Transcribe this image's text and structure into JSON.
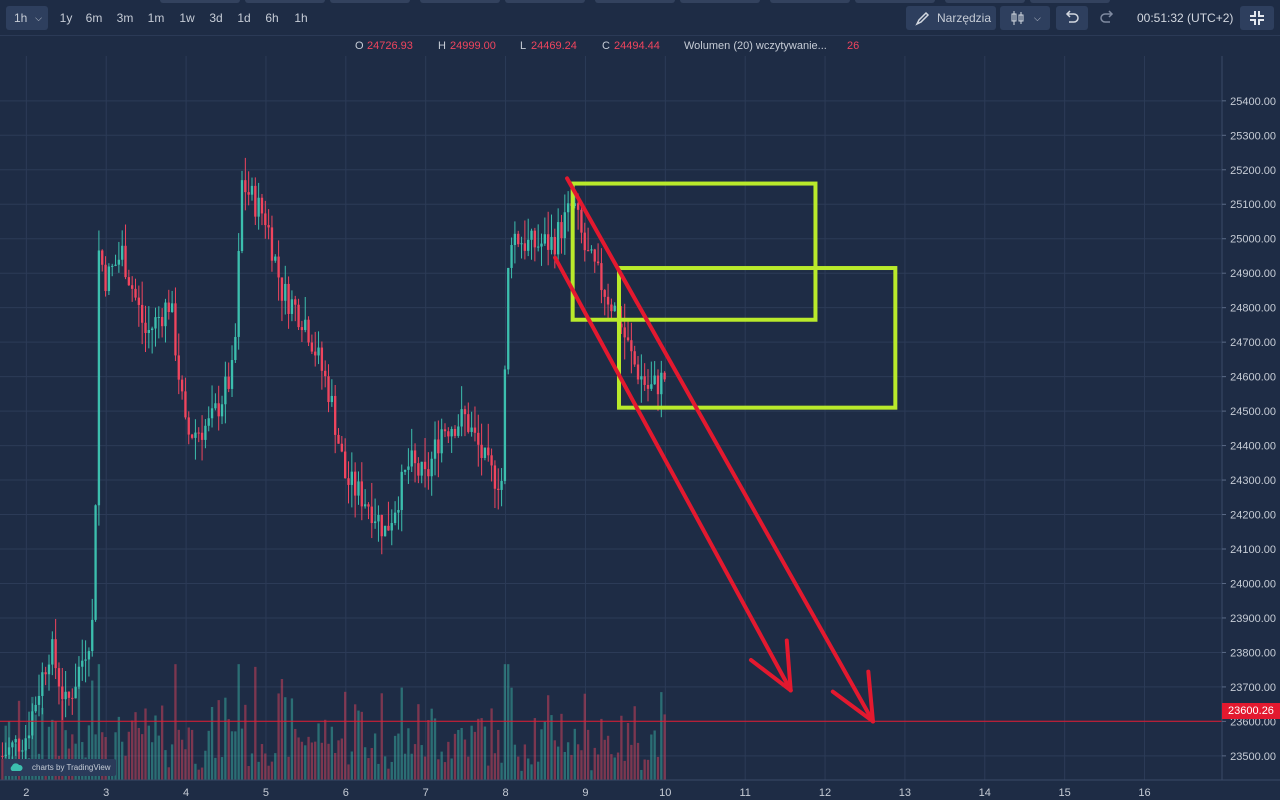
{
  "toolbar": {
    "interval": "1h",
    "ranges": [
      "1y",
      "6m",
      "3m",
      "1m",
      "1w",
      "3d",
      "1d",
      "6h",
      "1h"
    ],
    "tools_label": "Narzędzia",
    "clock": "00:51:32 (UTC+2)",
    "icons": [
      "pencil-icon",
      "candlestick-icon",
      "chevron-down-icon",
      "undo-icon",
      "redo-icon",
      "fullscreen-exit-icon"
    ]
  },
  "legend": {
    "o_label": "O",
    "o_value": "24726.93",
    "h_label": "H",
    "h_value": "24999.00",
    "l_label": "L",
    "l_value": "24469.24",
    "c_label": "C",
    "c_value": "24494.44",
    "volume_label": "Wolumen (20) wczytywanie...",
    "volume_value": "26"
  },
  "colors": {
    "background": "#1e2c45",
    "up": "#3cbfae",
    "down": "#f0455e",
    "annotation_box": "#b9ea2b",
    "annotation_arrow": "#e3192f",
    "price_line": "#e3192f"
  },
  "watermark": "charts by TradingView",
  "current_price_label": "23600.26",
  "chart_data": {
    "type": "candlestick",
    "title": "",
    "y_ticks": [
      "25400.00",
      "25300.00",
      "25200.00",
      "25100.00",
      "25000.00",
      "24900.00",
      "24800.00",
      "24700.00",
      "24600.00",
      "24500.00",
      "24400.00",
      "24300.00",
      "24200.00",
      "24100.00",
      "24000.00",
      "23900.00",
      "23800.00",
      "23700.00",
      "23600.00",
      "23500.00"
    ],
    "ylim": [
      23430,
      25530
    ],
    "x_ticks": [
      "2",
      "3",
      "4",
      "5",
      "6",
      "7",
      "8",
      "9",
      "10",
      "11",
      "12",
      "13",
      "14",
      "15",
      "16"
    ],
    "x_unit": "day",
    "xlim": [
      1.67,
      16.97
    ],
    "grid": true,
    "horizontal_line": 23600.26,
    "series": [
      {
        "x": 1.7,
        "close": 23500
      },
      {
        "x": 2.0,
        "close": 23560
      },
      {
        "x": 2.3,
        "close": 23820
      },
      {
        "x": 2.5,
        "close": 23640
      },
      {
        "x": 2.7,
        "close": 23780
      },
      {
        "x": 2.85,
        "close": 23900
      },
      {
        "x": 2.9,
        "close": 24970
      },
      {
        "x": 3.0,
        "close": 24880
      },
      {
        "x": 3.2,
        "close": 24960
      },
      {
        "x": 3.5,
        "close": 24720
      },
      {
        "x": 3.8,
        "close": 24820
      },
      {
        "x": 4.0,
        "close": 24430
      },
      {
        "x": 4.3,
        "close": 24460
      },
      {
        "x": 4.6,
        "close": 24620
      },
      {
        "x": 4.7,
        "close": 25160
      },
      {
        "x": 5.0,
        "close": 25060
      },
      {
        "x": 5.2,
        "close": 24850
      },
      {
        "x": 5.5,
        "close": 24760
      },
      {
        "x": 5.8,
        "close": 24550
      },
      {
        "x": 6.0,
        "close": 24300
      },
      {
        "x": 6.3,
        "close": 24230
      },
      {
        "x": 6.5,
        "close": 24150
      },
      {
        "x": 6.8,
        "close": 24350
      },
      {
        "x": 7.0,
        "close": 24300
      },
      {
        "x": 7.2,
        "close": 24450
      },
      {
        "x": 7.5,
        "close": 24480
      },
      {
        "x": 7.8,
        "close": 24320
      },
      {
        "x": 7.95,
        "close": 24300
      },
      {
        "x": 8.05,
        "close": 25020
      },
      {
        "x": 8.3,
        "close": 24980
      },
      {
        "x": 8.6,
        "close": 24990
      },
      {
        "x": 8.85,
        "close": 25100
      },
      {
        "x": 9.0,
        "close": 24960
      },
      {
        "x": 9.2,
        "close": 24870
      },
      {
        "x": 9.4,
        "close": 24780
      },
      {
        "x": 9.6,
        "close": 24640
      },
      {
        "x": 9.8,
        "close": 24560
      },
      {
        "x": 10.0,
        "close": 24600
      }
    ],
    "volume": {
      "max_bar_fraction_of_panel": 0.16
    },
    "annotations": [
      {
        "type": "rectangle",
        "x1": 8.84,
        "x2": 11.88,
        "y1": 24765,
        "y2": 25160
      },
      {
        "type": "rectangle",
        "x1": 9.42,
        "x2": 12.88,
        "y1": 24510,
        "y2": 24915
      },
      {
        "type": "arrow",
        "x1": 8.62,
        "y1": 24945,
        "x2": 11.57,
        "y2": 23690
      },
      {
        "type": "arrow",
        "x1": 8.77,
        "y1": 25175,
        "x2": 12.6,
        "y2": 23600
      }
    ]
  }
}
